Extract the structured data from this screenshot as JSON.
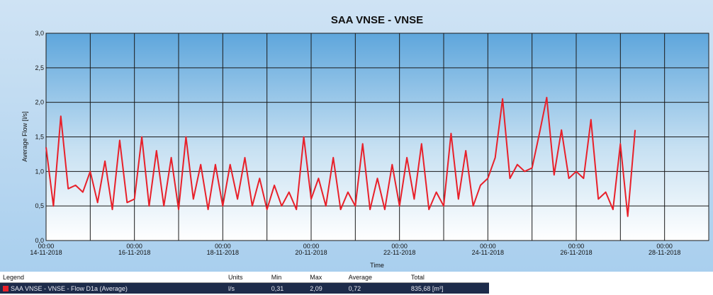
{
  "chart_data": {
    "type": "line",
    "title": "SAA VNSE - VNSE",
    "xlabel": "Time",
    "ylabel": "Average Flow [l/s]",
    "x": [
      "2018-11-14 00:00",
      "2018-11-14 04:00",
      "2018-11-14 08:00",
      "2018-11-14 12:00",
      "2018-11-14 16:00",
      "2018-11-14 20:00",
      "2018-11-15 00:00",
      "2018-11-15 04:00",
      "2018-11-15 08:00",
      "2018-11-15 12:00",
      "2018-11-15 16:00",
      "2018-11-15 20:00",
      "2018-11-16 00:00",
      "2018-11-16 04:00",
      "2018-11-16 08:00",
      "2018-11-16 12:00",
      "2018-11-16 16:00",
      "2018-11-16 20:00",
      "2018-11-17 00:00",
      "2018-11-17 04:00",
      "2018-11-17 08:00",
      "2018-11-17 12:00",
      "2018-11-17 16:00",
      "2018-11-17 20:00",
      "2018-11-18 00:00",
      "2018-11-18 04:00",
      "2018-11-18 08:00",
      "2018-11-18 12:00",
      "2018-11-18 16:00",
      "2018-11-18 20:00",
      "2018-11-19 00:00",
      "2018-11-19 04:00",
      "2018-11-19 08:00",
      "2018-11-19 12:00",
      "2018-11-19 16:00",
      "2018-11-19 20:00",
      "2018-11-20 00:00",
      "2018-11-20 04:00",
      "2018-11-20 08:00",
      "2018-11-20 12:00",
      "2018-11-20 16:00",
      "2018-11-20 20:00",
      "2018-11-21 00:00",
      "2018-11-21 04:00",
      "2018-11-21 08:00",
      "2018-11-21 12:00",
      "2018-11-21 16:00",
      "2018-11-21 20:00",
      "2018-11-22 00:00",
      "2018-11-22 04:00",
      "2018-11-22 08:00",
      "2018-11-22 12:00",
      "2018-11-22 16:00",
      "2018-11-22 20:00",
      "2018-11-23 00:00",
      "2018-11-23 04:00",
      "2018-11-23 08:00",
      "2018-11-23 12:00",
      "2018-11-23 16:00",
      "2018-11-23 20:00",
      "2018-11-24 00:00",
      "2018-11-24 04:00",
      "2018-11-24 08:00",
      "2018-11-24 12:00",
      "2018-11-24 16:00",
      "2018-11-24 20:00",
      "2018-11-25 00:00",
      "2018-11-25 04:00",
      "2018-11-25 08:00",
      "2018-11-25 12:00",
      "2018-11-25 16:00",
      "2018-11-25 20:00",
      "2018-11-26 00:00",
      "2018-11-26 04:00",
      "2018-11-26 08:00",
      "2018-11-26 12:00",
      "2018-11-26 16:00",
      "2018-11-26 20:00",
      "2018-11-27 00:00",
      "2018-11-27 04:00",
      "2018-11-27 08:00"
    ],
    "series": [
      {
        "name": "SAA VNSE - VNSE - Flow D1a (Average)",
        "color": "#e8202a",
        "values": [
          1.35,
          0.5,
          1.8,
          0.75,
          0.8,
          0.7,
          1.0,
          0.55,
          1.15,
          0.45,
          1.45,
          0.55,
          0.6,
          1.5,
          0.5,
          1.3,
          0.5,
          1.2,
          0.45,
          1.5,
          0.6,
          1.1,
          0.45,
          1.1,
          0.5,
          1.1,
          0.6,
          1.2,
          0.5,
          0.9,
          0.45,
          0.8,
          0.5,
          0.7,
          0.45,
          1.5,
          0.6,
          0.9,
          0.5,
          1.2,
          0.45,
          0.7,
          0.5,
          1.4,
          0.45,
          0.9,
          0.45,
          1.1,
          0.5,
          1.2,
          0.6,
          1.4,
          0.45,
          0.7,
          0.5,
          1.55,
          0.6,
          1.3,
          0.5,
          0.8,
          0.9,
          1.2,
          2.05,
          0.9,
          1.1,
          1.0,
          1.05,
          1.55,
          2.07,
          0.95,
          1.6,
          0.9,
          1.0,
          0.9,
          1.75,
          0.6,
          0.7,
          0.45,
          1.4,
          0.35,
          1.6
        ]
      }
    ],
    "xlim": [
      "2018-11-14 00:00",
      "2018-11-29 00:00"
    ],
    "xticks": [
      {
        "value": "2018-11-14 00:00",
        "label": "14-11-2018",
        "time": "00:00"
      },
      {
        "value": "2018-11-16 00:00",
        "label": "16-11-2018",
        "time": "00:00"
      },
      {
        "value": "2018-11-18 00:00",
        "label": "18-11-2018",
        "time": "00:00"
      },
      {
        "value": "2018-11-20 00:00",
        "label": "20-11-2018",
        "time": "00:00"
      },
      {
        "value": "2018-11-22 00:00",
        "label": "22-11-2018",
        "time": "00:00"
      },
      {
        "value": "2018-11-24 00:00",
        "label": "24-11-2018",
        "time": "00:00"
      },
      {
        "value": "2018-11-26 00:00",
        "label": "26-11-2018",
        "time": "00:00"
      },
      {
        "value": "2018-11-28 00:00",
        "label": "28-11-2018",
        "time": "00:00"
      }
    ],
    "xminorticks": [
      "2018-11-15 00:00",
      "2018-11-17 00:00",
      "2018-11-19 00:00",
      "2018-11-21 00:00",
      "2018-11-23 00:00",
      "2018-11-25 00:00",
      "2018-11-27 00:00"
    ],
    "ylim": [
      0,
      3
    ],
    "yticks": [
      {
        "value": 0,
        "label": "0,0"
      },
      {
        "value": 0.5,
        "label": "0,5"
      },
      {
        "value": 1,
        "label": "1,0"
      },
      {
        "value": 1.5,
        "label": "1,5"
      },
      {
        "value": 2,
        "label": "2,0"
      },
      {
        "value": 2.5,
        "label": "2,5"
      },
      {
        "value": 3,
        "label": "3,0"
      }
    ],
    "grid": true
  },
  "legend": {
    "headers": [
      "Legend",
      "Units",
      "Min",
      "Max",
      "Average",
      "Total"
    ],
    "row": [
      "l/s",
      "0,31",
      "2,09",
      "0,72",
      "835,68 [m³]"
    ]
  }
}
